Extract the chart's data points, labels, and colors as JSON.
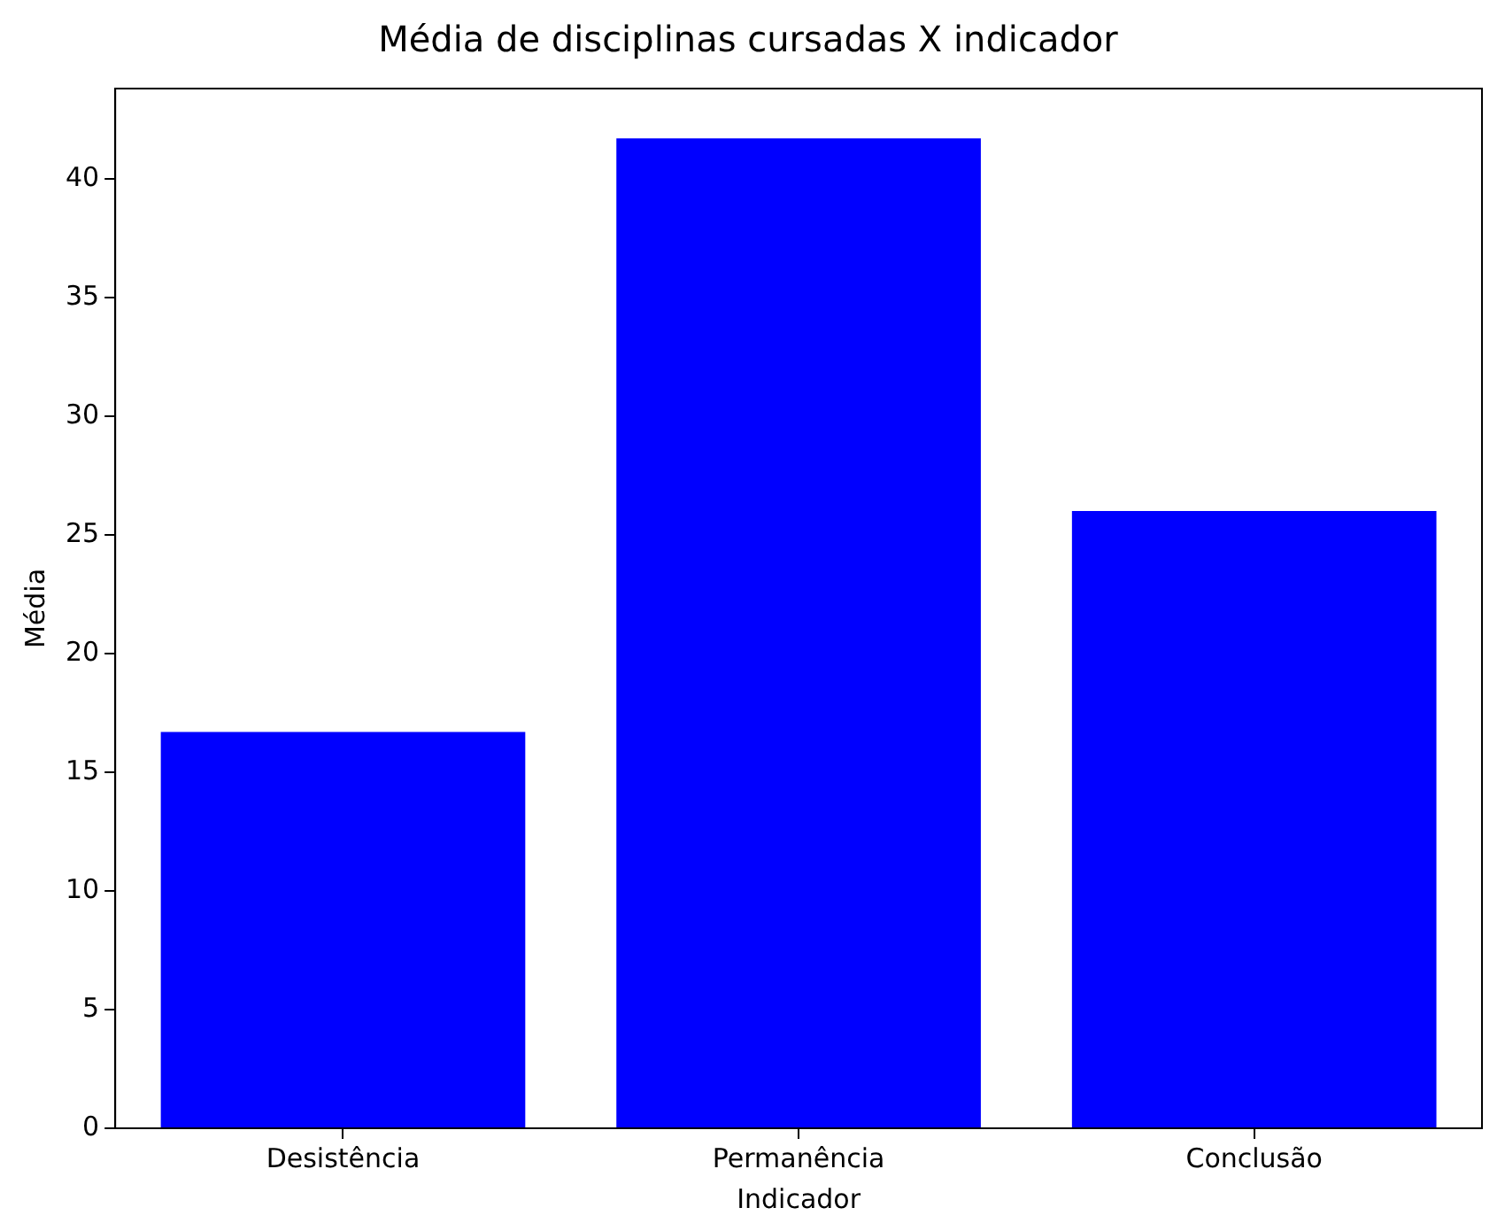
{
  "chart_data": {
    "type": "bar",
    "title": "Média de disciplinas cursadas X indicador",
    "xlabel": "Indicador",
    "ylabel": "Média",
    "categories": [
      "Desistência",
      "Permanência",
      "Conclusão"
    ],
    "values": [
      16.7,
      41.7,
      26
    ],
    "color": "#0000ff",
    "ylim": [
      0,
      43.8
    ],
    "yticks": [
      0,
      5,
      10,
      15,
      20,
      25,
      30,
      35,
      40
    ],
    "grid": false,
    "legend": false
  }
}
